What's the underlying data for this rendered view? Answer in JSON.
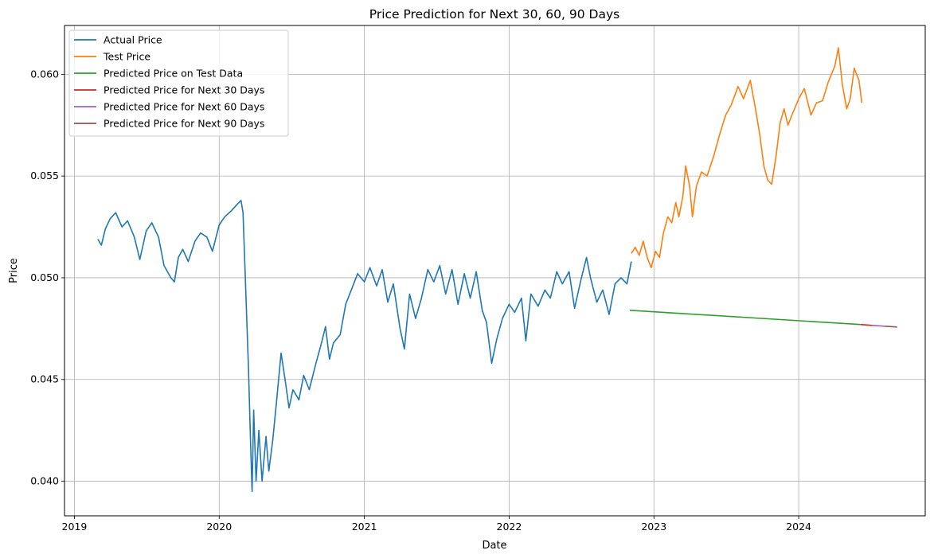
{
  "chart_data": {
    "type": "line",
    "title": "Price Prediction for Next 30, 60, 90 Days",
    "xlabel": "Date",
    "ylabel": "Price",
    "xlim": [
      "2018-12-07",
      "2024-11-15"
    ],
    "ylim": [
      0.0383,
      0.0624
    ],
    "x_ticks": [
      "2019-01-01",
      "2020-01-01",
      "2021-01-01",
      "2022-01-01",
      "2023-01-01",
      "2024-01-01"
    ],
    "x_tick_labels": [
      "2019",
      "2020",
      "2021",
      "2022",
      "2023",
      "2024"
    ],
    "y_ticks": [
      0.04,
      0.045,
      0.05,
      0.055,
      0.06
    ],
    "y_tick_labels": [
      "0.040",
      "0.045",
      "0.050",
      "0.055",
      "0.060"
    ],
    "grid": true,
    "legend_position": "top-left",
    "series": [
      {
        "name": "Actual Price",
        "color": "#1f77b4",
        "points": [
          [
            "2019-03-01",
            0.0519
          ],
          [
            "2019-03-10",
            0.0516
          ],
          [
            "2019-03-20",
            0.0524
          ],
          [
            "2019-04-01",
            0.0529
          ],
          [
            "2019-04-15",
            0.0532
          ],
          [
            "2019-05-01",
            0.0525
          ],
          [
            "2019-05-15",
            0.0528
          ],
          [
            "2019-06-01",
            0.052
          ],
          [
            "2019-06-15",
            0.0509
          ],
          [
            "2019-07-01",
            0.0523
          ],
          [
            "2019-07-15",
            0.0527
          ],
          [
            "2019-08-01",
            0.052
          ],
          [
            "2019-08-15",
            0.0506
          ],
          [
            "2019-09-01",
            0.05
          ],
          [
            "2019-09-10",
            0.0498
          ],
          [
            "2019-09-20",
            0.051
          ],
          [
            "2019-10-01",
            0.0514
          ],
          [
            "2019-10-15",
            0.0508
          ],
          [
            "2019-11-01",
            0.0518
          ],
          [
            "2019-11-15",
            0.0522
          ],
          [
            "2019-12-01",
            0.052
          ],
          [
            "2019-12-15",
            0.0513
          ],
          [
            "2020-01-01",
            0.0526
          ],
          [
            "2020-01-15",
            0.053
          ],
          [
            "2020-02-01",
            0.0533
          ],
          [
            "2020-02-15",
            0.0536
          ],
          [
            "2020-02-25",
            0.0538
          ],
          [
            "2020-03-01",
            0.0532
          ],
          [
            "2020-03-05",
            0.051
          ],
          [
            "2020-03-10",
            0.0482
          ],
          [
            "2020-03-15",
            0.0455
          ],
          [
            "2020-03-20",
            0.042
          ],
          [
            "2020-03-24",
            0.0395
          ],
          [
            "2020-03-28",
            0.0435
          ],
          [
            "2020-04-03",
            0.04
          ],
          [
            "2020-04-10",
            0.0425
          ],
          [
            "2020-04-18",
            0.04
          ],
          [
            "2020-04-28",
            0.0422
          ],
          [
            "2020-05-05",
            0.0405
          ],
          [
            "2020-05-15",
            0.042
          ],
          [
            "2020-05-25",
            0.044
          ],
          [
            "2020-06-05",
            0.0463
          ],
          [
            "2020-06-15",
            0.045
          ],
          [
            "2020-06-25",
            0.0436
          ],
          [
            "2020-07-05",
            0.0445
          ],
          [
            "2020-07-20",
            0.044
          ],
          [
            "2020-08-01",
            0.0452
          ],
          [
            "2020-08-15",
            0.0445
          ],
          [
            "2020-09-01",
            0.0458
          ],
          [
            "2020-09-15",
            0.0468
          ],
          [
            "2020-09-25",
            0.0476
          ],
          [
            "2020-10-05",
            0.046
          ],
          [
            "2020-10-15",
            0.0468
          ],
          [
            "2020-11-01",
            0.0472
          ],
          [
            "2020-11-15",
            0.0487
          ],
          [
            "2020-12-01",
            0.0495
          ],
          [
            "2020-12-15",
            0.0502
          ],
          [
            "2021-01-01",
            0.0498
          ],
          [
            "2021-01-15",
            0.0505
          ],
          [
            "2021-02-01",
            0.0496
          ],
          [
            "2021-02-15",
            0.0504
          ],
          [
            "2021-03-01",
            0.0488
          ],
          [
            "2021-03-15",
            0.0497
          ],
          [
            "2021-04-01",
            0.0475
          ],
          [
            "2021-04-12",
            0.0465
          ],
          [
            "2021-04-25",
            0.0492
          ],
          [
            "2021-05-10",
            0.048
          ],
          [
            "2021-05-25",
            0.049
          ],
          [
            "2021-06-10",
            0.0504
          ],
          [
            "2021-06-25",
            0.0498
          ],
          [
            "2021-07-10",
            0.0506
          ],
          [
            "2021-07-25",
            0.0492
          ],
          [
            "2021-08-10",
            0.0504
          ],
          [
            "2021-08-25",
            0.0487
          ],
          [
            "2021-09-10",
            0.0502
          ],
          [
            "2021-09-25",
            0.049
          ],
          [
            "2021-10-10",
            0.0503
          ],
          [
            "2021-10-25",
            0.0484
          ],
          [
            "2021-11-05",
            0.0478
          ],
          [
            "2021-11-18",
            0.0458
          ],
          [
            "2021-12-01",
            0.047
          ],
          [
            "2021-12-15",
            0.048
          ],
          [
            "2022-01-01",
            0.0487
          ],
          [
            "2022-01-15",
            0.0483
          ],
          [
            "2022-02-01",
            0.049
          ],
          [
            "2022-02-12",
            0.0469
          ],
          [
            "2022-02-25",
            0.0492
          ],
          [
            "2022-03-15",
            0.0486
          ],
          [
            "2022-04-01",
            0.0494
          ],
          [
            "2022-04-15",
            0.049
          ],
          [
            "2022-05-01",
            0.0503
          ],
          [
            "2022-05-15",
            0.0497
          ],
          [
            "2022-06-01",
            0.0503
          ],
          [
            "2022-06-15",
            0.0485
          ],
          [
            "2022-07-01",
            0.0499
          ],
          [
            "2022-07-15",
            0.051
          ],
          [
            "2022-07-25",
            0.05
          ],
          [
            "2022-08-10",
            0.0488
          ],
          [
            "2022-08-25",
            0.0494
          ],
          [
            "2022-09-10",
            0.0482
          ],
          [
            "2022-09-25",
            0.0497
          ],
          [
            "2022-10-10",
            0.05
          ],
          [
            "2022-10-25",
            0.0497
          ],
          [
            "2022-11-05",
            0.0508
          ]
        ]
      },
      {
        "name": "Test Price",
        "color": "#ff7f0e",
        "points": [
          [
            "2022-11-05",
            0.0512
          ],
          [
            "2022-11-15",
            0.0515
          ],
          [
            "2022-11-25",
            0.0511
          ],
          [
            "2022-12-05",
            0.0518
          ],
          [
            "2022-12-15",
            0.051
          ],
          [
            "2022-12-25",
            0.0505
          ],
          [
            "2023-01-05",
            0.0513
          ],
          [
            "2023-01-15",
            0.051
          ],
          [
            "2023-01-25",
            0.0522
          ],
          [
            "2023-02-05",
            0.053
          ],
          [
            "2023-02-15",
            0.0527
          ],
          [
            "2023-02-25",
            0.0537
          ],
          [
            "2023-03-05",
            0.053
          ],
          [
            "2023-03-15",
            0.054
          ],
          [
            "2023-03-22",
            0.0555
          ],
          [
            "2023-04-01",
            0.0545
          ],
          [
            "2023-04-08",
            0.053
          ],
          [
            "2023-04-18",
            0.0545
          ],
          [
            "2023-05-01",
            0.0552
          ],
          [
            "2023-05-15",
            0.055
          ],
          [
            "2023-06-01",
            0.056
          ],
          [
            "2023-06-15",
            0.057
          ],
          [
            "2023-07-01",
            0.058
          ],
          [
            "2023-07-15",
            0.0585
          ],
          [
            "2023-08-01",
            0.0594
          ],
          [
            "2023-08-15",
            0.0588
          ],
          [
            "2023-09-01",
            0.0597
          ],
          [
            "2023-09-15",
            0.0582
          ],
          [
            "2023-09-25",
            0.057
          ],
          [
            "2023-10-05",
            0.0555
          ],
          [
            "2023-10-15",
            0.0548
          ],
          [
            "2023-10-25",
            0.0546
          ],
          [
            "2023-11-05",
            0.056
          ],
          [
            "2023-11-15",
            0.0576
          ],
          [
            "2023-11-25",
            0.0583
          ],
          [
            "2023-12-05",
            0.0575
          ],
          [
            "2023-12-15",
            0.058
          ],
          [
            "2024-01-01",
            0.0588
          ],
          [
            "2024-01-15",
            0.0593
          ],
          [
            "2024-02-01",
            0.058
          ],
          [
            "2024-02-15",
            0.0586
          ],
          [
            "2024-03-01",
            0.0587
          ],
          [
            "2024-03-15",
            0.0596
          ],
          [
            "2024-04-01",
            0.0604
          ],
          [
            "2024-04-10",
            0.0613
          ],
          [
            "2024-04-20",
            0.0595
          ],
          [
            "2024-05-01",
            0.0583
          ],
          [
            "2024-05-10",
            0.0588
          ],
          [
            "2024-05-20",
            0.0603
          ],
          [
            "2024-06-01",
            0.0597
          ],
          [
            "2024-06-08",
            0.0586
          ]
        ]
      },
      {
        "name": "Predicted Price on Test Data",
        "color": "#2ca02c",
        "points": [
          [
            "2022-11-01",
            0.0484
          ],
          [
            "2024-06-05",
            0.0477
          ]
        ]
      },
      {
        "name": "Predicted Price for Next 30 Days",
        "color": "#d62728",
        "points": [
          [
            "2024-06-05",
            0.0477
          ],
          [
            "2024-07-05",
            0.04766
          ]
        ]
      },
      {
        "name": "Predicted Price for Next 60 Days",
        "color": "#9467bd",
        "points": [
          [
            "2024-07-05",
            0.04766
          ],
          [
            "2024-08-05",
            0.04762
          ]
        ]
      },
      {
        "name": "Predicted Price for Next 90 Days",
        "color": "#8c564b",
        "points": [
          [
            "2024-08-05",
            0.04762
          ],
          [
            "2024-09-05",
            0.04758
          ]
        ]
      }
    ]
  }
}
